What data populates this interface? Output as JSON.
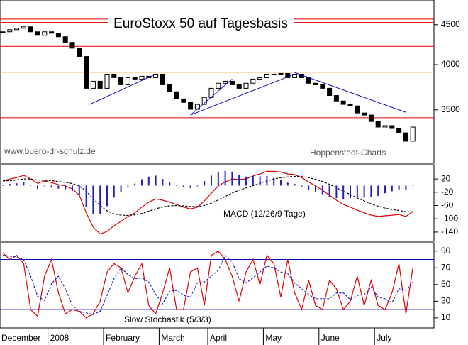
{
  "chart_data": [
    {
      "type": "candlestick",
      "title": "EuroStoxx 50 auf Tagesbasis",
      "annotations": [
        "www.buero-dr-schulz.de",
        "Hoppenstedt-Charts"
      ],
      "categories": [
        "December",
        null,
        null,
        null,
        null,
        null,
        null,
        "2008",
        null,
        null,
        null,
        null,
        null,
        null,
        null,
        "February",
        null,
        null,
        null,
        null,
        null,
        null,
        null,
        "March",
        null,
        null,
        null,
        null,
        null,
        null,
        "April",
        null,
        null,
        null,
        null,
        null,
        null,
        null,
        "May",
        null,
        null,
        null,
        null,
        null,
        null,
        null,
        "June",
        null,
        null,
        null,
        null,
        null,
        null,
        null,
        "July",
        null,
        null,
        null,
        null,
        null
      ],
      "values": [
        4407,
        4434,
        4453,
        4472,
        4407,
        4361,
        4407,
        4388,
        4343,
        4271,
        4199,
        4097,
        3730,
        3809,
        3730,
        3889,
        3849,
        3769,
        3849,
        3833,
        3865,
        3849,
        3889,
        3769,
        3692,
        3615,
        3578,
        3506,
        3557,
        3631,
        3730,
        3786,
        3809,
        3769,
        3730,
        3786,
        3833,
        3849,
        3889,
        3889,
        3897,
        3849,
        3889,
        3849,
        3786,
        3769,
        3730,
        3652,
        3593,
        3557,
        3541,
        3468,
        3447,
        3382,
        3327,
        3341,
        3313,
        3271,
        3191,
        3327
      ],
      "color_up": "#ffffff",
      "color_down": "#000000",
      "log_scale": true,
      "ylim": [
        2990,
        4840
      ],
      "yticks": [
        3500,
        4000,
        4500
      ],
      "levels": [
        {
          "value": 4575,
          "color": "#e00000"
        },
        {
          "value": 4530,
          "color": "#e00000"
        },
        {
          "value": 4222,
          "color": "#e00000"
        },
        {
          "value": 4030,
          "color": "#f0a040"
        },
        {
          "value": 3910,
          "color": "#f0a040"
        },
        {
          "value": 3420,
          "color": "#e00000"
        }
      ],
      "trendlines": [
        {
          "x": [
            12.5,
            22
          ],
          "y": [
            3557,
            3889
          ],
          "color": "#1010c0"
        },
        {
          "x": [
            27,
            33
          ],
          "y": [
            3447,
            3833
          ],
          "color": "#1010c0"
        },
        {
          "x": [
            27,
            42
          ],
          "y": [
            3447,
            3889
          ],
          "color": "#1010c0"
        },
        {
          "x": [
            42,
            58
          ],
          "y": [
            3907,
            3475
          ],
          "color": "#1010c0"
        }
      ]
    },
    {
      "type": "line",
      "title": "MACD (12/26/9 Tage)",
      "series": [
        {
          "color": "#e00000",
          "values": [
            14,
            20,
            24,
            31,
            20,
            7,
            14,
            9,
            3,
            -1,
            -10,
            -29,
            -82,
            -125,
            -146,
            -138,
            -121,
            -108,
            -93,
            -82,
            -65,
            -50,
            -40,
            -44,
            -50,
            -57,
            -65,
            -70,
            -65,
            -46,
            -23,
            -1,
            11,
            20,
            18,
            20,
            29,
            35,
            43,
            43,
            41,
            35,
            33,
            24,
            11,
            -1,
            -14,
            -29,
            -44,
            -57,
            -65,
            -74,
            -82,
            -89,
            -93,
            -91,
            -89,
            -87,
            -93,
            -78
          ]
        },
        {
          "color": "#000000",
          "dash": true,
          "values": [
            14,
            15,
            17,
            20,
            20,
            17,
            16,
            15,
            12,
            10,
            6,
            -1,
            -17,
            -39,
            -60,
            -76,
            -85,
            -89,
            -90,
            -88,
            -84,
            -77,
            -70,
            -64,
            -61,
            -60,
            -61,
            -63,
            -63,
            -60,
            -53,
            -43,
            -33,
            -22,
            -14,
            -7,
            0,
            7,
            14,
            20,
            24,
            26,
            28,
            27,
            24,
            19,
            12,
            4,
            -6,
            -17,
            -27,
            -37,
            -46,
            -55,
            -62,
            -68,
            -72,
            -75,
            -79,
            -79
          ]
        },
        {
          "type": "bar",
          "color": "#2020c0",
          "values": [
            0,
            5,
            7,
            11,
            0,
            -10,
            -2,
            -6,
            -9,
            -11,
            -16,
            -28,
            -65,
            -86,
            -86,
            -62,
            -36,
            -19,
            -3,
            6,
            19,
            27,
            30,
            20,
            11,
            3,
            -4,
            -7,
            -2,
            14,
            30,
            42,
            44,
            42,
            32,
            27,
            29,
            28,
            29,
            23,
            17,
            9,
            5,
            -3,
            -13,
            -20,
            -26,
            -33,
            -38,
            -40,
            -38,
            -37,
            -36,
            -34,
            -31,
            -23,
            -17,
            -12,
            -14,
            1
          ]
        }
      ],
      "ylim": [
        -168,
        63
      ],
      "yticks": [
        20,
        -20,
        -60,
        -100,
        -140
      ]
    },
    {
      "type": "line",
      "title": "Slow Stochastik (5/3/3)",
      "series": [
        {
          "color": "#e00000",
          "values": [
            88,
            80,
            85,
            75,
            20,
            12,
            60,
            80,
            40,
            15,
            20,
            18,
            10,
            15,
            30,
            65,
            75,
            70,
            40,
            60,
            75,
            25,
            15,
            40,
            70,
            20,
            20,
            65,
            70,
            25,
            85,
            90,
            80,
            60,
            30,
            65,
            80,
            50,
            85,
            75,
            35,
            80,
            40,
            20,
            55,
            25,
            20,
            55,
            45,
            20,
            30,
            60,
            25,
            55,
            25,
            20,
            40,
            75,
            15,
            70
          ]
        },
        {
          "color": "#2020c0",
          "dash": true,
          "values": [
            85,
            84,
            83,
            80,
            60,
            36,
            31,
            51,
            60,
            45,
            25,
            18,
            16,
            14,
            18,
            37,
            57,
            70,
            62,
            57,
            58,
            53,
            38,
            27,
            42,
            43,
            37,
            35,
            52,
            53,
            60,
            67,
            85,
            77,
            57,
            52,
            58,
            65,
            72,
            70,
            65,
            63,
            52,
            45,
            38,
            33,
            33,
            33,
            40,
            40,
            32,
            37,
            38,
            47,
            35,
            33,
            28,
            45,
            43,
            53
          ]
        }
      ],
      "ylim": [
        -2,
        100
      ],
      "yticks": [
        10,
        30,
        50,
        70,
        90
      ],
      "levels": [
        {
          "value": 80,
          "color": "#0000c0"
        },
        {
          "value": 20,
          "color": "#0000c0"
        }
      ]
    }
  ]
}
